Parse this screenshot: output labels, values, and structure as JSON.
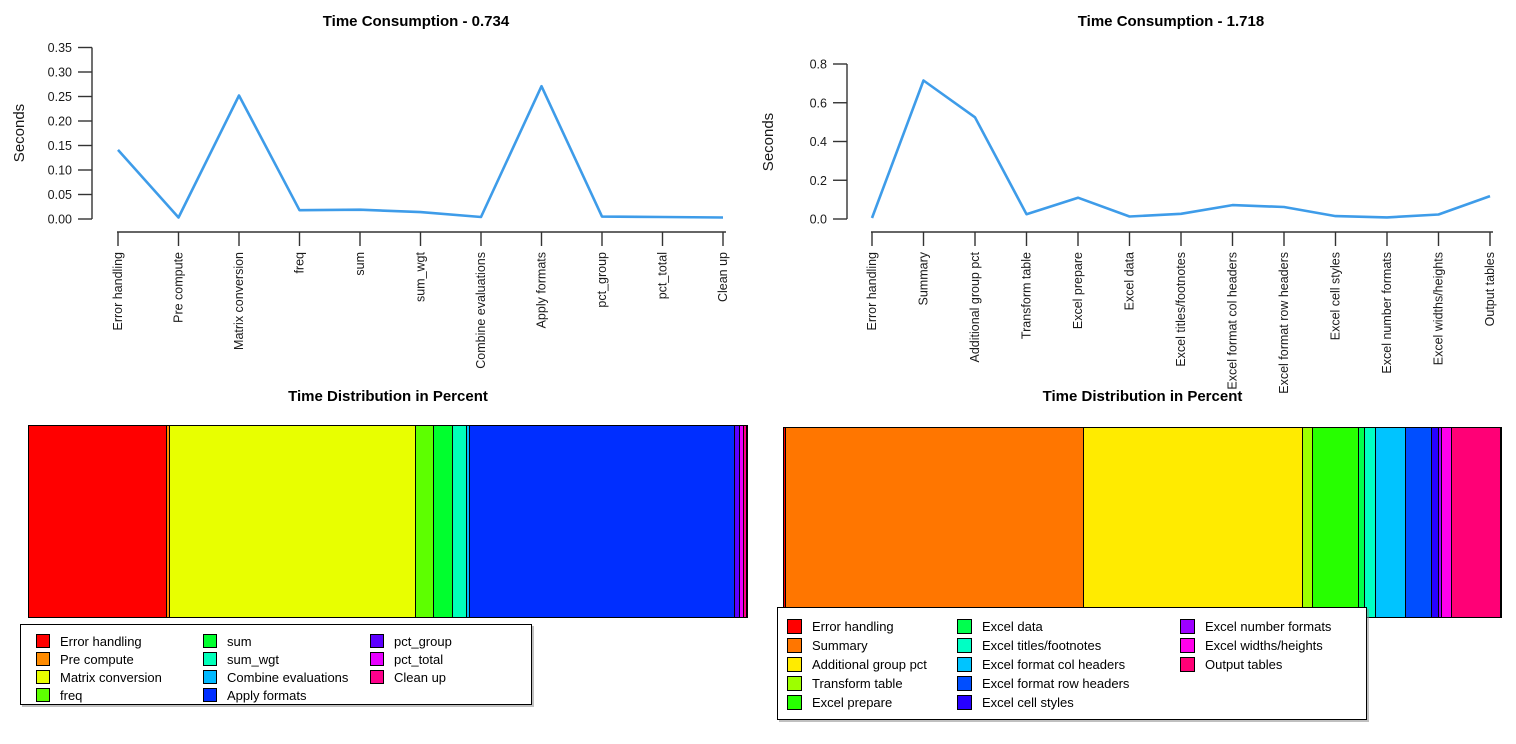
{
  "page": {
    "background": "#ffffff",
    "axis_color": "#333333",
    "text_color": "#1a1a1a"
  },
  "chart_data": [
    {
      "id": "top-left-line",
      "type": "line",
      "title": "Time Consumption - 0.734",
      "total_seconds": 0.734,
      "ylabel": "Seconds",
      "ylim": [
        0,
        0.35
      ],
      "yticks": [
        "0.00",
        "0.05",
        "0.10",
        "0.15",
        "0.20",
        "0.25",
        "0.30",
        "0.35"
      ],
      "grid": false,
      "legend_position": "none",
      "line_color": "#3E9CE9",
      "x_tick_label_rotation": -90,
      "categories": [
        "Error handling",
        "Pre compute",
        "Matrix conversion",
        "freq",
        "sum",
        "sum_wgt",
        "Combine evaluations",
        "Apply formats",
        "pct_group",
        "pct_total",
        "Clean up"
      ],
      "values": [
        0.141,
        0.003,
        0.252,
        0.018,
        0.019,
        0.014,
        0.004,
        0.271,
        0.005,
        0.004,
        0.003
      ]
    },
    {
      "id": "top-right-line",
      "type": "line",
      "title": "Time Consumption - 1.718",
      "total_seconds": 1.718,
      "ylabel": "Seconds",
      "ylim": [
        0,
        0.8
      ],
      "yticks": [
        "0.0",
        "0.2",
        "0.4",
        "0.6",
        "0.8"
      ],
      "grid": false,
      "legend_position": "none",
      "line_color": "#3E9CE9",
      "x_tick_label_rotation": -90,
      "categories": [
        "Error handling",
        "Summary",
        "Additional group pct",
        "Transform table",
        "Excel prepare",
        "Excel data",
        "Excel titles/footnotes",
        "Excel format col headers",
        "Excel format row headers",
        "Excel cell styles",
        "Excel number formats",
        "Excel widths/heights",
        "Output tables"
      ],
      "values": [
        0.005,
        0.715,
        0.525,
        0.025,
        0.11,
        0.013,
        0.027,
        0.072,
        0.062,
        0.015,
        0.008,
        0.023,
        0.118
      ]
    },
    {
      "id": "bottom-left-bar",
      "type": "bar",
      "subtype": "stacked-horizontal-single",
      "title": "Time Distribution in Percent",
      "legend_position": "below",
      "legend_columns": [
        4,
        4,
        3
      ],
      "categories": [
        "Error handling",
        "Pre compute",
        "Matrix conversion",
        "freq",
        "sum",
        "sum_wgt",
        "Combine evaluations",
        "Apply formats",
        "pct_group",
        "pct_total",
        "Clean up"
      ],
      "values_seconds": [
        0.141,
        0.003,
        0.252,
        0.018,
        0.019,
        0.014,
        0.004,
        0.271,
        0.005,
        0.004,
        0.003
      ],
      "percent": [
        19.2,
        0.4,
        34.3,
        2.5,
        2.6,
        1.9,
        0.5,
        36.9,
        0.7,
        0.5,
        0.4
      ],
      "colors": [
        "#FF0000",
        "#FF8B00",
        "#E8FF00",
        "#5DFF00",
        "#00FF2E",
        "#00FFB9",
        "#00B9FF",
        "#002EFF",
        "#5D00FF",
        "#E800FF",
        "#FF008B"
      ]
    },
    {
      "id": "bottom-right-bar",
      "type": "bar",
      "subtype": "stacked-horizontal-single",
      "title": "Time Distribution in Percent",
      "legend_position": "overlapping-bottom-left",
      "legend_columns": [
        5,
        5,
        3
      ],
      "categories": [
        "Error handling",
        "Summary",
        "Additional group pct",
        "Transform table",
        "Excel prepare",
        "Excel data",
        "Excel titles/footnotes",
        "Excel format col headers",
        "Excel format row headers",
        "Excel cell styles",
        "Excel number formats",
        "Excel widths/heights",
        "Output tables"
      ],
      "values_seconds": [
        0.005,
        0.715,
        0.525,
        0.025,
        0.11,
        0.013,
        0.027,
        0.072,
        0.062,
        0.015,
        0.008,
        0.023,
        0.118
      ],
      "percent": [
        0.3,
        41.6,
        30.6,
        1.5,
        6.4,
        0.8,
        1.6,
        4.2,
        3.6,
        0.9,
        0.5,
        1.3,
        6.9
      ],
      "colors": [
        "#FF0000",
        "#FF7600",
        "#FFEB00",
        "#9DFF00",
        "#27FF00",
        "#00FF4E",
        "#00FFC4",
        "#00C4FF",
        "#004EFF",
        "#2700FF",
        "#9D00FF",
        "#FF00EB",
        "#FF0076"
      ]
    }
  ]
}
